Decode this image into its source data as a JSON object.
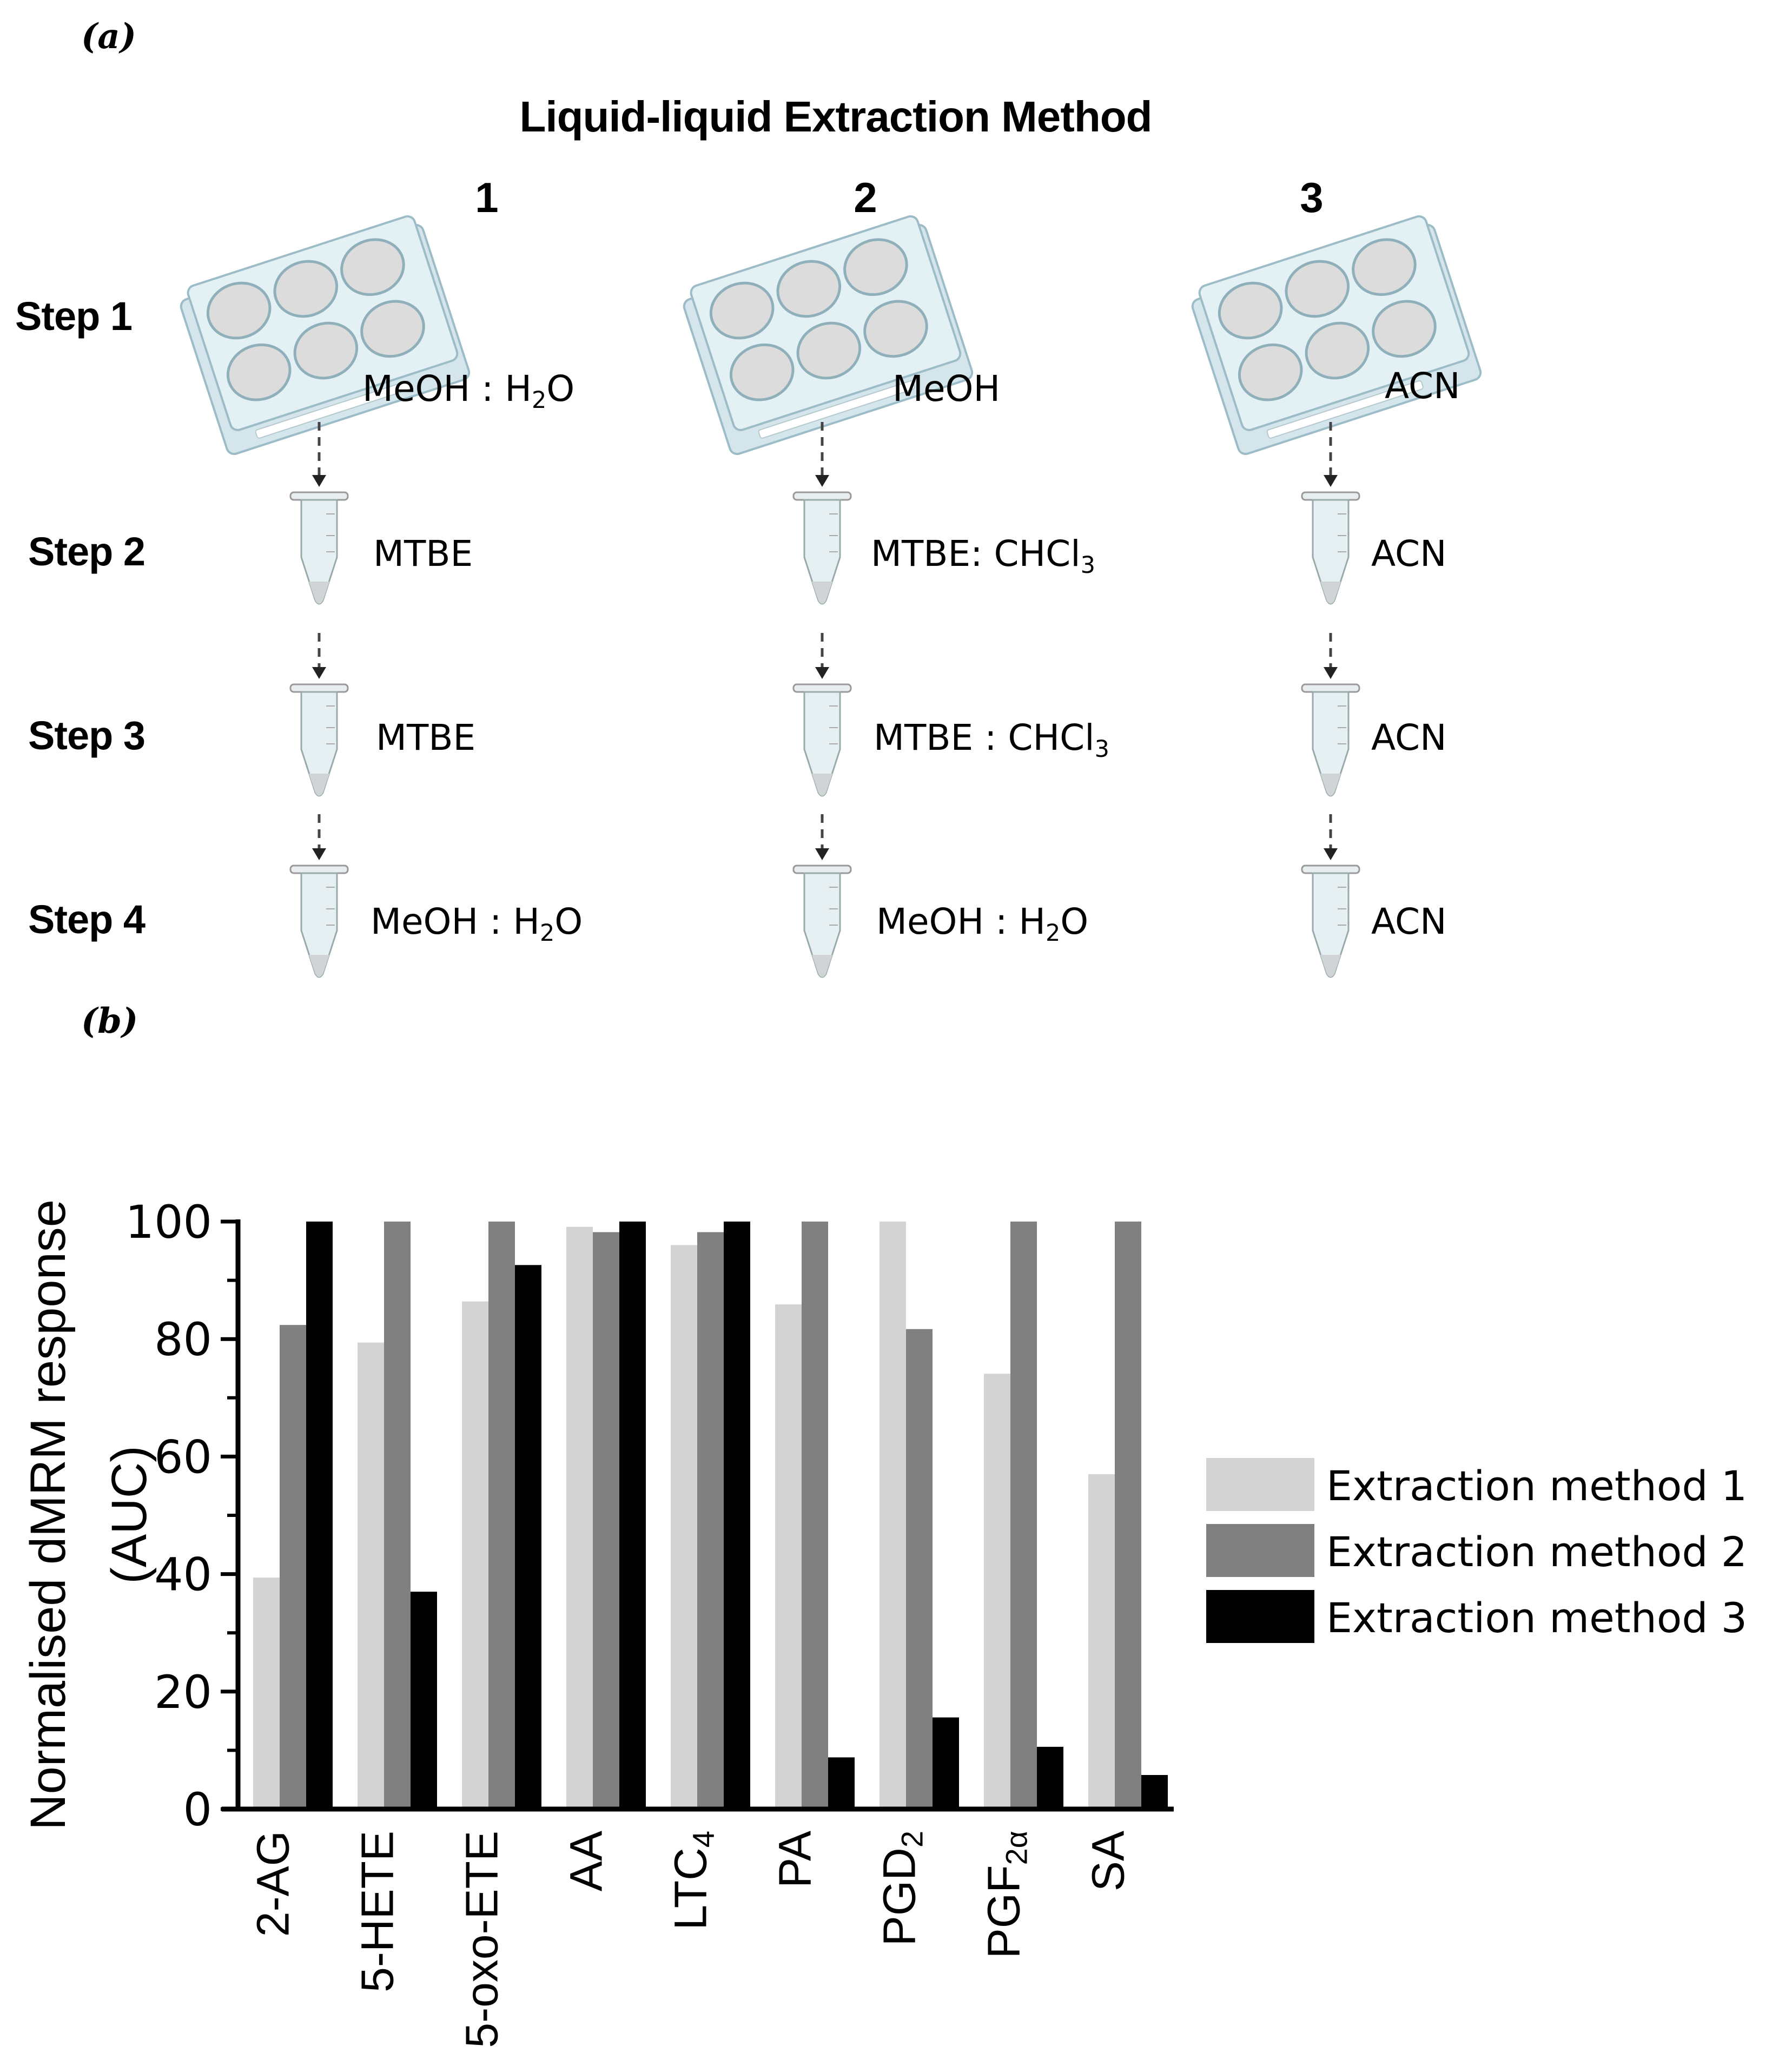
{
  "panel_a": {
    "label": "(a)",
    "title": "Liquid-liquid Extraction Method",
    "methods": [
      {
        "number": "1",
        "steps": [
          {
            "main": "MeOH : H",
            "sub": "2",
            "tail": "O"
          },
          {
            "main": "MTBE",
            "sub": "",
            "tail": ""
          },
          {
            "main": "MTBE",
            "sub": "",
            "tail": ""
          },
          {
            "main": "MeOH : H",
            "sub": "2",
            "tail": "O"
          }
        ]
      },
      {
        "number": "2",
        "steps": [
          {
            "main": "MeOH",
            "sub": "",
            "tail": ""
          },
          {
            "main": "MTBE: CHCl",
            "sub": "3",
            "tail": ""
          },
          {
            "main": "MTBE : CHCl",
            "sub": "3",
            "tail": ""
          },
          {
            "main": "MeOH : H",
            "sub": "2",
            "tail": "O"
          }
        ]
      },
      {
        "number": "3",
        "steps": [
          {
            "main": "ACN",
            "sub": "",
            "tail": ""
          },
          {
            "main": "ACN",
            "sub": "",
            "tail": ""
          },
          {
            "main": "ACN",
            "sub": "",
            "tail": ""
          },
          {
            "main": "ACN",
            "sub": "",
            "tail": ""
          }
        ]
      }
    ],
    "step_labels": [
      "Step 1",
      "Step 2",
      "Step 3",
      "Step 4"
    ],
    "icons": {
      "step1": "six-well-plate-icon",
      "steps2to4": "microcentrifuge-tube-icon",
      "connector": "dashed-arrow-down-icon"
    }
  },
  "panel_b": {
    "label": "(b)"
  },
  "chart_data": {
    "type": "bar",
    "title": "",
    "xlabel": "",
    "ylabel": "Normalised dMRM response (AUC)",
    "ylabel_lines": [
      "Normalised dMRM response",
      "(AUC)"
    ],
    "ylim": [
      0,
      100
    ],
    "yticks": [
      0,
      20,
      40,
      60,
      80,
      100
    ],
    "minor_ticks": [
      10,
      30,
      50,
      70,
      90
    ],
    "grid": false,
    "legend_position": "right",
    "categories": [
      "2-AG",
      "5-HETE",
      "5-oxo-ETE",
      "AA",
      "LTC4",
      "PA",
      "PGD2",
      "PGF2α",
      "SA"
    ],
    "category_display": [
      {
        "main": "2-AG",
        "sub": ""
      },
      {
        "main": "5-HETE",
        "sub": ""
      },
      {
        "main": "5-oxo-ETE",
        "sub": ""
      },
      {
        "main": "AA",
        "sub": ""
      },
      {
        "main": "LTC",
        "sub": "4"
      },
      {
        "main": "PA",
        "sub": ""
      },
      {
        "main": "PGD",
        "sub": "2"
      },
      {
        "main": "PGF",
        "sub": "2α"
      },
      {
        "main": "SA",
        "sub": ""
      }
    ],
    "series": [
      {
        "name": "Extraction method 1",
        "color": "#d3d3d3",
        "values": [
          39.4,
          79.4,
          86.4,
          99.1,
          96.0,
          85.9,
          100,
          74.1,
          57.0
        ]
      },
      {
        "name": "Extraction method 2",
        "color": "#808080",
        "values": [
          82.4,
          100,
          100,
          98.2,
          98.2,
          100,
          81.7,
          100,
          100
        ]
      },
      {
        "name": "Extraction method 3",
        "color": "#000000",
        "values": [
          100,
          37.0,
          92.6,
          100,
          100,
          8.8,
          15.6,
          10.6,
          5.8
        ]
      }
    ]
  }
}
